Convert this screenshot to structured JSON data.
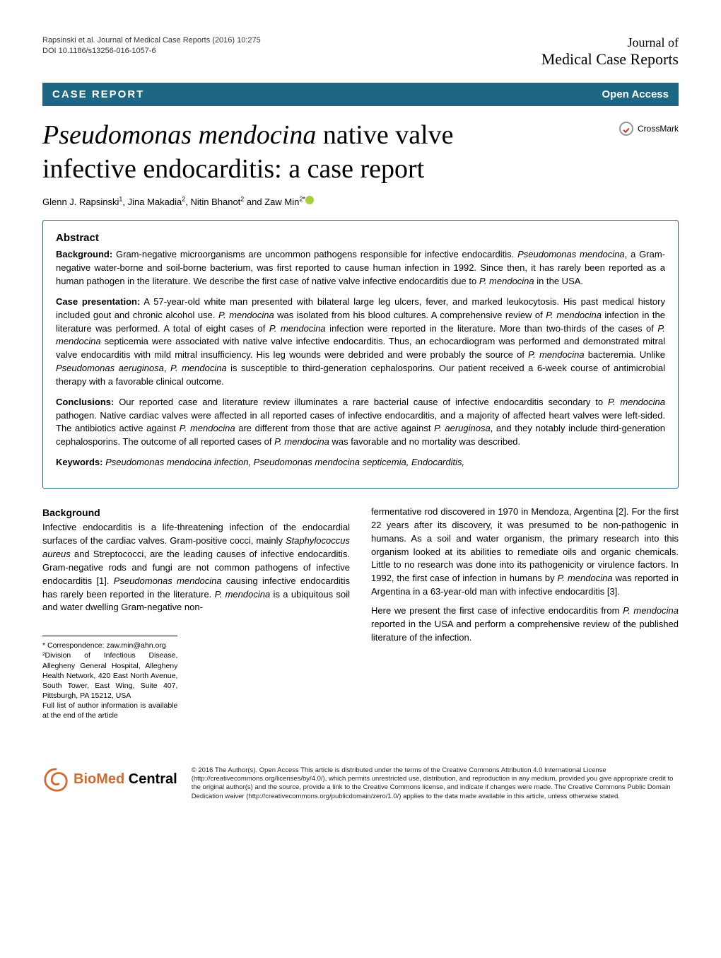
{
  "header": {
    "citation": "Rapsinski et al. Journal of Medical Case Reports  (2016) 10:275",
    "doi": "DOI 10.1186/s13256-016-1057-6",
    "journal_line1": "Journal of",
    "journal_line2": "Medical Case Reports"
  },
  "banner": {
    "left": "CASE REPORT",
    "right": "Open Access"
  },
  "title": {
    "italic_part": "Pseudomonas mendocina",
    "rest": " native valve infective endocarditis: a case report"
  },
  "crossmark_label": "CrossMark",
  "authors_html": "Glenn J. Rapsinski<sup>1</sup>, Jina Makadia<sup>2</sup>, Nitin Bhanot<sup>2</sup> and Zaw Min<sup>2*</sup>",
  "abstract": {
    "heading": "Abstract",
    "sections": [
      {
        "label": "Background:",
        "text": "Gram-negative microorganisms are uncommon pathogens responsible for infective endocarditis. Pseudomonas mendocina, a Gram-negative water-borne and soil-borne bacterium, was first reported to cause human infection in 1992. Since then, it has rarely been reported as a human pathogen in the literature. We describe the first case of native valve infective endocarditis due to P. mendocina in the USA.",
        "italic_terms": [
          "Pseudomonas mendocina",
          "P. mendocina"
        ]
      },
      {
        "label": "Case presentation:",
        "text": "A 57-year-old white man presented with bilateral large leg ulcers, fever, and marked leukocytosis. His past medical history included gout and chronic alcohol use. P. mendocina was isolated from his blood cultures. A comprehensive review of P. mendocina infection in the literature was performed. A total of eight cases of P. mendocina infection were reported in the literature. More than two-thirds of the cases of P. mendocina septicemia were associated with native valve infective endocarditis. Thus, an echocardiogram was performed and demonstrated mitral valve endocarditis with mild mitral insufficiency. His leg wounds were debrided and were probably the source of P. mendocina bacteremia. Unlike Pseudomonas aeruginosa, P. mendocina is susceptible to third-generation cephalosporins. Our patient received a 6-week course of antimicrobial therapy with a favorable clinical outcome.",
        "italic_terms": [
          "P. mendocina",
          "Pseudomonas aeruginosa"
        ]
      },
      {
        "label": "Conclusions:",
        "text": "Our reported case and literature review illuminates a rare bacterial cause of infective endocarditis secondary to P. mendocina pathogen. Native cardiac valves were affected in all reported cases of infective endocarditis, and a majority of affected heart valves were left-sided. The antibiotics active against P. mendocina are different from those that are active against P. aeruginosa, and they notably include third-generation cephalosporins. The outcome of all reported cases of P. mendocina was favorable and no mortality was described.",
        "italic_terms": [
          "P. mendocina",
          "P. aeruginosa"
        ]
      }
    ],
    "keywords_label": "Keywords:",
    "keywords_text": "Pseudomonas mendocina infection, Pseudomonas mendocina septicemia, Endocarditis,"
  },
  "body": {
    "background_heading": "Background",
    "col1_p1": "Infective endocarditis is a life-threatening infection of the endocardial surfaces of the cardiac valves. Gram-positive cocci, mainly Staphylococcus aureus and Streptococci, are the leading causes of infective endocarditis. Gram-negative rods and fungi are not common pathogens of infective endocarditis [1]. Pseudomonas mendocina causing infective endocarditis has rarely been reported in the literature. P. mendocina is a ubiquitous soil and water dwelling Gram-negative non-",
    "col2_p1": "fermentative rod discovered in 1970 in Mendoza, Argentina [2]. For the first 22 years after its discovery, it was presumed to be non-pathogenic in humans. As a soil and water organism, the primary research into this organism looked at its abilities to remediate oils and organic chemicals. Little to no research was done into its pathogenicity or virulence factors. In 1992, the first case of infection in humans by P. mendocina was reported in Argentina in a 63-year-old man with infective endocarditis [3].",
    "col2_p2": "Here we present the first case of infective endocarditis from P. mendocina reported in the USA and perform a comprehensive review of the published literature of the infection."
  },
  "correspondence": {
    "line1": "* Correspondence: zaw.min@ahn.org",
    "line2": "²Division of Infectious Disease, Allegheny General Hospital, Allegheny Health Network, 420 East North Avenue, South Tower, East Wing, Suite 407, Pittsburgh, PA 15212, USA",
    "line3": "Full list of author information is available at the end of the article"
  },
  "footer": {
    "bmc_bio": "BioMed",
    "bmc_central": " Central",
    "license": "© 2016 The Author(s). Open Access This article is distributed under the terms of the Creative Commons Attribution 4.0 International License (http://creativecommons.org/licenses/by/4.0/), which permits unrestricted use, distribution, and reproduction in any medium, provided you give appropriate credit to the original author(s) and the source, provide a link to the Creative Commons license, and indicate if changes were made. The Creative Commons Public Domain Dedication waiver (http://creativecommons.org/publicdomain/zero/1.0/) applies to the data made available in this article, unless otherwise stated."
  },
  "colors": {
    "banner_bg": "#1d6785",
    "bmc_orange": "#d16b2e",
    "orcid_green": "#a6ce39"
  }
}
